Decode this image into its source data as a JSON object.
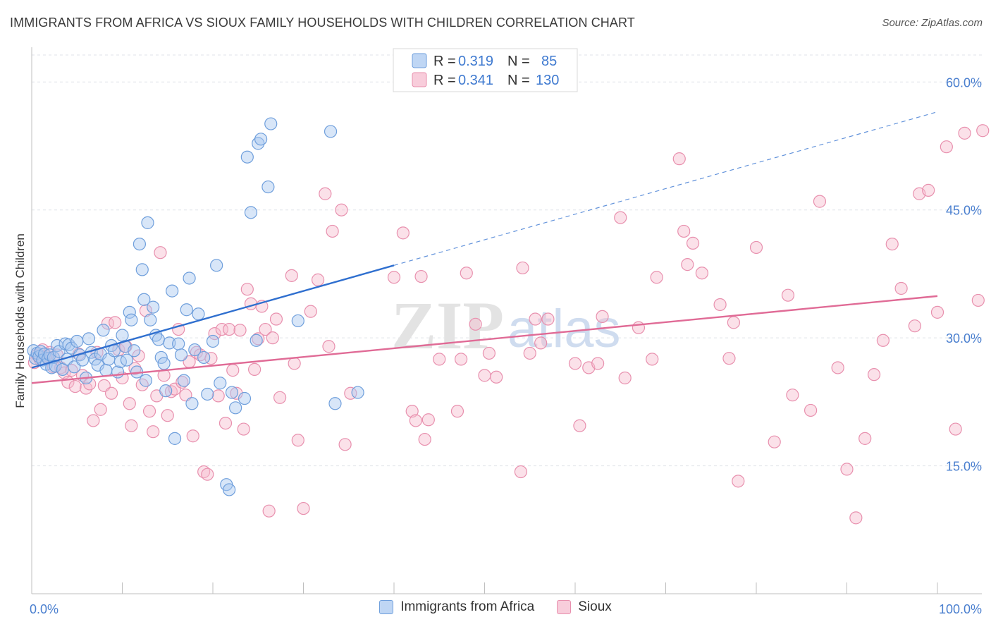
{
  "header": {
    "title": "IMMIGRANTS FROM AFRICA VS SIOUX FAMILY HOUSEHOLDS WITH CHILDREN CORRELATION CHART",
    "source": "Source: ZipAtlas.com"
  },
  "watermark": {
    "zip": "ZIP",
    "atlas": "atlas"
  },
  "colors": {
    "blue_fill": "#a9c8f0",
    "blue_stroke": "#6f9fdc",
    "blue_line": "#2f6fcf",
    "pink_fill": "#f6bccf",
    "pink_stroke": "#e890ae",
    "pink_line": "#e06b96",
    "tick_label": "#4a7fcf",
    "grid": "#dfe3e8"
  },
  "legend": {
    "rows": [
      {
        "r_label": "R =",
        "r_value": "0.319",
        "n_label": "N =",
        "n_value": "85"
      },
      {
        "r_label": "R =",
        "r_value": "0.341",
        "n_label": "N =",
        "n_value": "130"
      }
    ],
    "series_names": [
      "Immigrants from Africa",
      "Sioux"
    ]
  },
  "chart_data": {
    "type": "scatter",
    "ylabel": "Family Households with Children",
    "xlabel": "",
    "xlim": [
      0,
      100
    ],
    "ylim": [
      0,
      63
    ],
    "x_tick_labels": [
      "0.0%",
      "100.0%"
    ],
    "y_ticks": [
      15,
      30,
      45,
      60
    ],
    "y_tick_labels": [
      "15.0%",
      "30.0%",
      "45.0%",
      "60.0%"
    ],
    "grid": "horizontal dashed",
    "legend_placement": "top-center",
    "series": [
      {
        "name": "Immigrants from Africa",
        "r": 0.319,
        "n": 85,
        "trend": {
          "x": [
            0,
            40
          ],
          "y": [
            26.5,
            38.5
          ],
          "dashed_to": [
            100,
            56.5
          ]
        },
        "points": [
          [
            0.2,
            28.5
          ],
          [
            0.4,
            27.6
          ],
          [
            0.6,
            28.2
          ],
          [
            0.8,
            27.8
          ],
          [
            1.0,
            28.4
          ],
          [
            1.2,
            27.4
          ],
          [
            1.4,
            28.1
          ],
          [
            1.6,
            26.9
          ],
          [
            1.8,
            27.6
          ],
          [
            2.0,
            28.0
          ],
          [
            2.2,
            26.5
          ],
          [
            2.4,
            27.7
          ],
          [
            2.6,
            26.7
          ],
          [
            2.8,
            29.1
          ],
          [
            3.0,
            28.4
          ],
          [
            3.4,
            26.3
          ],
          [
            3.7,
            29.3
          ],
          [
            3.9,
            27.5
          ],
          [
            4.1,
            29.2
          ],
          [
            4.4,
            28.8
          ],
          [
            4.7,
            26.6
          ],
          [
            5.0,
            29.6
          ],
          [
            5.3,
            28.0
          ],
          [
            5.6,
            27.4
          ],
          [
            6.0,
            25.3
          ],
          [
            6.3,
            29.9
          ],
          [
            6.6,
            28.3
          ],
          [
            7.0,
            27.5
          ],
          [
            7.3,
            26.8
          ],
          [
            7.6,
            28.1
          ],
          [
            7.9,
            30.9
          ],
          [
            8.2,
            26.2
          ],
          [
            8.5,
            27.5
          ],
          [
            8.8,
            29.1
          ],
          [
            9.1,
            28.5
          ],
          [
            9.5,
            26.0
          ],
          [
            9.8,
            27.2
          ],
          [
            10.0,
            30.3
          ],
          [
            10.3,
            29.0
          ],
          [
            10.5,
            27.4
          ],
          [
            10.8,
            33.0
          ],
          [
            11.0,
            32.1
          ],
          [
            11.3,
            28.5
          ],
          [
            11.6,
            26.0
          ],
          [
            11.9,
            41.0
          ],
          [
            12.2,
            38.0
          ],
          [
            12.4,
            34.5
          ],
          [
            12.6,
            25.0
          ],
          [
            12.8,
            43.5
          ],
          [
            13.1,
            32.1
          ],
          [
            13.4,
            33.6
          ],
          [
            13.7,
            30.3
          ],
          [
            14.0,
            29.8
          ],
          [
            14.3,
            27.7
          ],
          [
            14.6,
            27.0
          ],
          [
            14.8,
            23.8
          ],
          [
            15.2,
            29.4
          ],
          [
            15.5,
            35.5
          ],
          [
            15.8,
            18.2
          ],
          [
            16.2,
            29.3
          ],
          [
            16.5,
            28.0
          ],
          [
            16.8,
            25.0
          ],
          [
            17.1,
            33.3
          ],
          [
            17.4,
            37.0
          ],
          [
            17.7,
            22.3
          ],
          [
            18.0,
            28.6
          ],
          [
            18.4,
            32.8
          ],
          [
            19.0,
            27.7
          ],
          [
            19.4,
            23.4
          ],
          [
            20.0,
            29.6
          ],
          [
            20.4,
            38.5
          ],
          [
            20.8,
            24.7
          ],
          [
            21.5,
            12.8
          ],
          [
            21.8,
            12.2
          ],
          [
            22.1,
            23.6
          ],
          [
            22.5,
            21.8
          ],
          [
            23.5,
            22.9
          ],
          [
            23.8,
            51.2
          ],
          [
            24.2,
            44.7
          ],
          [
            24.8,
            29.7
          ],
          [
            25.0,
            52.8
          ],
          [
            25.3,
            53.3
          ],
          [
            26.1,
            47.7
          ],
          [
            26.4,
            55.1
          ],
          [
            29.4,
            32.0
          ],
          [
            33.0,
            54.2
          ],
          [
            33.5,
            22.3
          ],
          [
            36.0,
            23.6
          ]
        ]
      },
      {
        "name": "Sioux",
        "r": 0.341,
        "n": 130,
        "trend": {
          "x": [
            0,
            100
          ],
          "y": [
            24.7,
            34.9
          ]
        },
        "points": [
          [
            0.3,
            27.1
          ],
          [
            0.6,
            28.0
          ],
          [
            0.9,
            27.5
          ],
          [
            1.2,
            28.6
          ],
          [
            1.6,
            27.9
          ],
          [
            2.0,
            28.3
          ],
          [
            2.4,
            26.6
          ],
          [
            2.8,
            28.0
          ],
          [
            3.2,
            26.5
          ],
          [
            3.6,
            25.9
          ],
          [
            4.0,
            24.8
          ],
          [
            4.4,
            26.2
          ],
          [
            4.8,
            24.3
          ],
          [
            5.2,
            28.1
          ],
          [
            5.6,
            25.6
          ],
          [
            6.0,
            24.1
          ],
          [
            6.4,
            24.6
          ],
          [
            6.8,
            20.3
          ],
          [
            7.2,
            28.3
          ],
          [
            7.6,
            21.6
          ],
          [
            8.0,
            24.4
          ],
          [
            8.4,
            31.7
          ],
          [
            8.8,
            23.5
          ],
          [
            9.2,
            31.8
          ],
          [
            9.6,
            28.6
          ],
          [
            10.0,
            25.3
          ],
          [
            10.4,
            29.0
          ],
          [
            10.8,
            22.3
          ],
          [
            11.0,
            19.7
          ],
          [
            11.4,
            26.4
          ],
          [
            11.8,
            27.9
          ],
          [
            12.2,
            24.5
          ],
          [
            12.6,
            33.2
          ],
          [
            13.0,
            21.4
          ],
          [
            13.4,
            19.0
          ],
          [
            13.8,
            23.2
          ],
          [
            14.2,
            40.0
          ],
          [
            14.6,
            25.6
          ],
          [
            15.0,
            20.9
          ],
          [
            15.4,
            23.7
          ],
          [
            15.8,
            24.0
          ],
          [
            16.2,
            31.0
          ],
          [
            16.6,
            24.8
          ],
          [
            17.0,
            23.3
          ],
          [
            17.4,
            27.2
          ],
          [
            17.8,
            18.5
          ],
          [
            18.2,
            28.3
          ],
          [
            18.6,
            28.0
          ],
          [
            19.0,
            14.3
          ],
          [
            19.4,
            14.0
          ],
          [
            19.8,
            27.6
          ],
          [
            20.2,
            30.5
          ],
          [
            20.6,
            23.2
          ],
          [
            21.0,
            31.0
          ],
          [
            21.4,
            20.0
          ],
          [
            21.8,
            31.0
          ],
          [
            22.2,
            26.2
          ],
          [
            22.6,
            23.5
          ],
          [
            23.0,
            30.9
          ],
          [
            23.4,
            19.3
          ],
          [
            23.8,
            35.7
          ],
          [
            24.2,
            34.0
          ],
          [
            24.6,
            26.3
          ],
          [
            25.0,
            29.9
          ],
          [
            25.4,
            33.7
          ],
          [
            25.8,
            31.0
          ],
          [
            26.2,
            9.7
          ],
          [
            26.6,
            30.0
          ],
          [
            27.0,
            32.2
          ],
          [
            27.4,
            23.0
          ],
          [
            28.7,
            37.3
          ],
          [
            29.0,
            27.0
          ],
          [
            29.4,
            18.0
          ],
          [
            30.0,
            10.0
          ],
          [
            30.8,
            33.1
          ],
          [
            31.6,
            36.8
          ],
          [
            32.4,
            46.9
          ],
          [
            32.8,
            29.0
          ],
          [
            33.2,
            42.5
          ],
          [
            34.2,
            45.0
          ],
          [
            34.6,
            17.5
          ],
          [
            35.2,
            23.5
          ],
          [
            40.0,
            37.1
          ],
          [
            41.0,
            42.3
          ],
          [
            42.0,
            21.4
          ],
          [
            42.4,
            20.3
          ],
          [
            43.0,
            37.2
          ],
          [
            43.4,
            18.1
          ],
          [
            43.8,
            20.4
          ],
          [
            45.0,
            27.5
          ],
          [
            47.0,
            21.4
          ],
          [
            47.4,
            27.5
          ],
          [
            48.0,
            37.6
          ],
          [
            49.0,
            31.6
          ],
          [
            50.0,
            25.6
          ],
          [
            50.5,
            28.2
          ],
          [
            51.3,
            25.4
          ],
          [
            54.0,
            14.3
          ],
          [
            54.2,
            38.2
          ],
          [
            55.0,
            28.2
          ],
          [
            55.6,
            32.2
          ],
          [
            56.2,
            29.4
          ],
          [
            57.0,
            32.2
          ],
          [
            60.0,
            27.0
          ],
          [
            60.5,
            19.7
          ],
          [
            61.5,
            26.5
          ],
          [
            62.5,
            27.0
          ],
          [
            63.0,
            32.5
          ],
          [
            65.0,
            44.1
          ],
          [
            65.5,
            25.3
          ],
          [
            67.0,
            31.2
          ],
          [
            68.5,
            27.5
          ],
          [
            69.0,
            37.1
          ],
          [
            71.5,
            51.0
          ],
          [
            72.0,
            42.5
          ],
          [
            72.4,
            38.6
          ],
          [
            73.0,
            41.1
          ],
          [
            74.0,
            37.6
          ],
          [
            76.0,
            33.9
          ],
          [
            77.0,
            27.6
          ],
          [
            77.5,
            31.8
          ],
          [
            78.0,
            13.2
          ],
          [
            80.0,
            40.6
          ],
          [
            82.0,
            17.8
          ],
          [
            83.5,
            35.0
          ],
          [
            84.0,
            23.3
          ],
          [
            86.0,
            21.5
          ],
          [
            87.0,
            46.0
          ],
          [
            89.0,
            26.5
          ],
          [
            90.0,
            14.6
          ],
          [
            91.0,
            8.9
          ],
          [
            92.0,
            18.2
          ],
          [
            93.0,
            25.7
          ],
          [
            94.0,
            29.7
          ],
          [
            95.0,
            41.0
          ],
          [
            96.0,
            35.8
          ],
          [
            97.5,
            31.4
          ],
          [
            98.0,
            46.9
          ],
          [
            99.0,
            47.3
          ],
          [
            100.0,
            33.0
          ],
          [
            101.0,
            52.4
          ],
          [
            102.0,
            19.3
          ],
          [
            103.0,
            54.0
          ],
          [
            104.5,
            34.4
          ],
          [
            105.0,
            54.3
          ]
        ]
      }
    ]
  }
}
